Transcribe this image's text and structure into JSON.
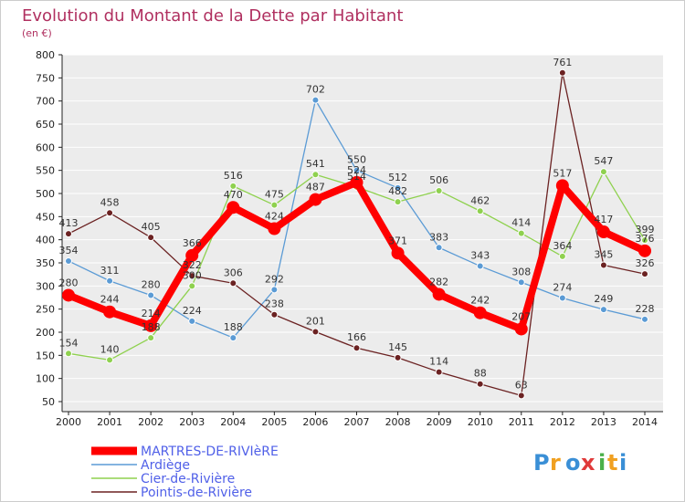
{
  "chart_data": {
    "type": "line",
    "title": "Evolution du Montant de la Dette par Habitant",
    "ylabel": "(en €)",
    "xlabel": "",
    "categories": [
      "2000",
      "2001",
      "2002",
      "2003",
      "2004",
      "2005",
      "2006",
      "2007",
      "2008",
      "2009",
      "2010",
      "2011",
      "2012",
      "2013",
      "2014"
    ],
    "ylim": [
      50,
      800
    ],
    "yticks": [
      50,
      100,
      150,
      200,
      250,
      300,
      350,
      400,
      450,
      500,
      550,
      600,
      650,
      700,
      750,
      800
    ],
    "grid": "horizontal",
    "legend_position": "bottom-left",
    "series": [
      {
        "name": "MARTRES-DE-RIVIèRE",
        "color": "#ff0000",
        "values": [
          280,
          244,
          214,
          366,
          470,
          424,
          487,
          524,
          371,
          282,
          242,
          207,
          517,
          417,
          376
        ]
      },
      {
        "name": "Ardiège",
        "color": "#5b9bd5",
        "values": [
          354,
          311,
          280,
          224,
          188,
          292,
          702,
          550,
          512,
          383,
          343,
          308,
          274,
          249,
          228
        ]
      },
      {
        "name": "Cier-de-Rivière",
        "color": "#8fd14f",
        "values": [
          154,
          140,
          188,
          300,
          516,
          475,
          541,
          514,
          482,
          506,
          462,
          414,
          364,
          547,
          399
        ]
      },
      {
        "name": "Pointis-de-Rivière",
        "color": "#6b2222",
        "values": [
          413,
          458,
          405,
          322,
          306,
          238,
          201,
          166,
          145,
          114,
          88,
          63,
          761,
          345,
          326
        ]
      }
    ]
  },
  "logo": {
    "letters": [
      "P",
      "r",
      "o",
      "x",
      "i",
      "t",
      "i"
    ],
    "colors": [
      "#3a8fd6",
      "#f0a020",
      "#3a8fd6",
      "#e03a3a",
      "#4ab04a",
      "#f0a020",
      "#3a8fd6"
    ]
  }
}
